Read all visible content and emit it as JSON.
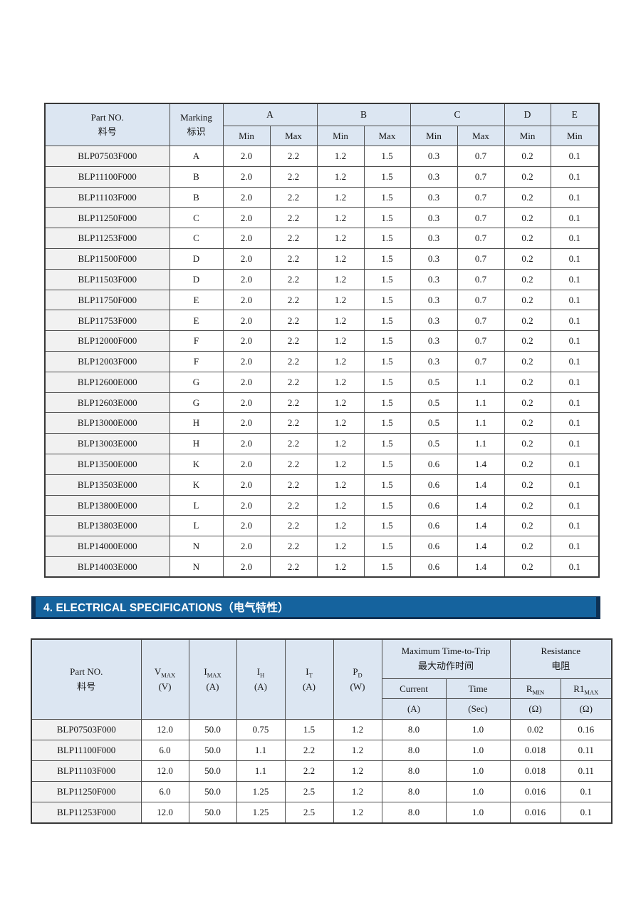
{
  "colors": {
    "header_bg": "#dce6f2",
    "part_column_bg": "#f1f1f1",
    "grid": "#4d4d4d",
    "outer_border": "#383838",
    "banner_bg": "#15639e",
    "banner_edge": "#0e3155",
    "banner_text": "#ffffff",
    "text": "#141414"
  },
  "section_banner": {
    "title": "4. ELECTRICAL SPECIFICATIONS（电气特性）"
  },
  "dimensions_table": {
    "header": {
      "part_no": {
        "line1": "Part NO.",
        "line2": "料号"
      },
      "marking": {
        "line1": "Marking",
        "line2": "标识"
      },
      "groups": [
        {
          "label": "A",
          "cols": [
            "Min",
            "Max"
          ]
        },
        {
          "label": "B",
          "cols": [
            "Min",
            "Max"
          ]
        },
        {
          "label": "C",
          "cols": [
            "Min",
            "Max"
          ]
        },
        {
          "label": "D",
          "cols": [
            "Min"
          ]
        },
        {
          "label": "E",
          "cols": [
            "Min"
          ]
        }
      ]
    },
    "rows": [
      [
        "BLP07503F000",
        "A",
        "2.0",
        "2.2",
        "1.2",
        "1.5",
        "0.3",
        "0.7",
        "0.2",
        "0.1"
      ],
      [
        "BLP11100F000",
        "B",
        "2.0",
        "2.2",
        "1.2",
        "1.5",
        "0.3",
        "0.7",
        "0.2",
        "0.1"
      ],
      [
        "BLP11103F000",
        "B",
        "2.0",
        "2.2",
        "1.2",
        "1.5",
        "0.3",
        "0.7",
        "0.2",
        "0.1"
      ],
      [
        "BLP11250F000",
        "C",
        "2.0",
        "2.2",
        "1.2",
        "1.5",
        "0.3",
        "0.7",
        "0.2",
        "0.1"
      ],
      [
        "BLP11253F000",
        "C",
        "2.0",
        "2.2",
        "1.2",
        "1.5",
        "0.3",
        "0.7",
        "0.2",
        "0.1"
      ],
      [
        "BLP11500F000",
        "D",
        "2.0",
        "2.2",
        "1.2",
        "1.5",
        "0.3",
        "0.7",
        "0.2",
        "0.1"
      ],
      [
        "BLP11503F000",
        "D",
        "2.0",
        "2.2",
        "1.2",
        "1.5",
        "0.3",
        "0.7",
        "0.2",
        "0.1"
      ],
      [
        "BLP11750F000",
        "E",
        "2.0",
        "2.2",
        "1.2",
        "1.5",
        "0.3",
        "0.7",
        "0.2",
        "0.1"
      ],
      [
        "BLP11753F000",
        "E",
        "2.0",
        "2.2",
        "1.2",
        "1.5",
        "0.3",
        "0.7",
        "0.2",
        "0.1"
      ],
      [
        "BLP12000F000",
        "F",
        "2.0",
        "2.2",
        "1.2",
        "1.5",
        "0.3",
        "0.7",
        "0.2",
        "0.1"
      ],
      [
        "BLP12003F000",
        "F",
        "2.0",
        "2.2",
        "1.2",
        "1.5",
        "0.3",
        "0.7",
        "0.2",
        "0.1"
      ],
      [
        "BLP12600E000",
        "G",
        "2.0",
        "2.2",
        "1.2",
        "1.5",
        "0.5",
        "1.1",
        "0.2",
        "0.1"
      ],
      [
        "BLP12603E000",
        "G",
        "2.0",
        "2.2",
        "1.2",
        "1.5",
        "0.5",
        "1.1",
        "0.2",
        "0.1"
      ],
      [
        "BLP13000E000",
        "H",
        "2.0",
        "2.2",
        "1.2",
        "1.5",
        "0.5",
        "1.1",
        "0.2",
        "0.1"
      ],
      [
        "BLP13003E000",
        "H",
        "2.0",
        "2.2",
        "1.2",
        "1.5",
        "0.5",
        "1.1",
        "0.2",
        "0.1"
      ],
      [
        "BLP13500E000",
        "K",
        "2.0",
        "2.2",
        "1.2",
        "1.5",
        "0.6",
        "1.4",
        "0.2",
        "0.1"
      ],
      [
        "BLP13503E000",
        "K",
        "2.0",
        "2.2",
        "1.2",
        "1.5",
        "0.6",
        "1.4",
        "0.2",
        "0.1"
      ],
      [
        "BLP13800E000",
        "L",
        "2.0",
        "2.2",
        "1.2",
        "1.5",
        "0.6",
        "1.4",
        "0.2",
        "0.1"
      ],
      [
        "BLP13803E000",
        "L",
        "2.0",
        "2.2",
        "1.2",
        "1.5",
        "0.6",
        "1.4",
        "0.2",
        "0.1"
      ],
      [
        "BLP14000E000",
        "N",
        "2.0",
        "2.2",
        "1.2",
        "1.5",
        "0.6",
        "1.4",
        "0.2",
        "0.1"
      ],
      [
        "BLP14003E000",
        "N",
        "2.0",
        "2.2",
        "1.2",
        "1.5",
        "0.6",
        "1.4",
        "0.2",
        "0.1"
      ]
    ]
  },
  "electrical_table": {
    "header": {
      "part_no": {
        "line1": "Part NO.",
        "line2": "料号"
      },
      "simple_cols": [
        {
          "base": "V",
          "sub": "MAX",
          "unit": "(V)"
        },
        {
          "base": "I",
          "sub": "MAX",
          "unit": "(A)"
        },
        {
          "base": "I",
          "sub": "H",
          "unit": "(A)"
        },
        {
          "base": "I",
          "sub": "T",
          "unit": "(A)"
        },
        {
          "base": "P",
          "sub": "D",
          "unit": "(W)"
        }
      ],
      "trip_group": {
        "line1": "Maximum Time-to-Trip",
        "line2": "最大动作时间",
        "cols": [
          {
            "label": "Current",
            "unit": "(A)"
          },
          {
            "label": "Time",
            "unit": "(Sec)"
          }
        ]
      },
      "resistance_group": {
        "line1": "Resistance",
        "line2": "电阻",
        "cols": [
          {
            "base": "R",
            "sub": "MIN",
            "unit": "(Ω)"
          },
          {
            "base": "R1",
            "sub": "MAX",
            "unit": "(Ω)"
          }
        ]
      }
    },
    "rows": [
      [
        "BLP07503F000",
        "12.0",
        "50.0",
        "0.75",
        "1.5",
        "1.2",
        "8.0",
        "1.0",
        "0.02",
        "0.16"
      ],
      [
        "BLP11100F000",
        "6.0",
        "50.0",
        "1.1",
        "2.2",
        "1.2",
        "8.0",
        "1.0",
        "0.018",
        "0.11"
      ],
      [
        "BLP11103F000",
        "12.0",
        "50.0",
        "1.1",
        "2.2",
        "1.2",
        "8.0",
        "1.0",
        "0.018",
        "0.11"
      ],
      [
        "BLP11250F000",
        "6.0",
        "50.0",
        "1.25",
        "2.5",
        "1.2",
        "8.0",
        "1.0",
        "0.016",
        "0.1"
      ],
      [
        "BLP11253F000",
        "12.0",
        "50.0",
        "1.25",
        "2.5",
        "1.2",
        "8.0",
        "1.0",
        "0.016",
        "0.1"
      ]
    ]
  }
}
